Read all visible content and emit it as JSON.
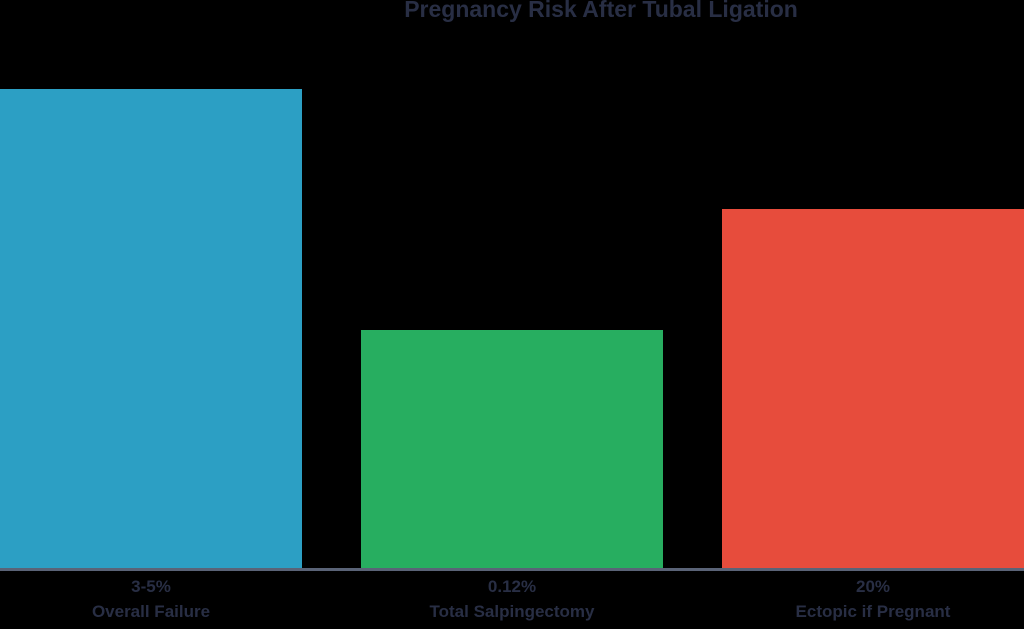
{
  "title": "Pregnancy Risk After Tubal Ligation",
  "colors": {
    "background": "#000000",
    "title_text": "#282e44",
    "label_text": "#282e44",
    "axis_line": "#5a6377",
    "bar_blue": "#2c9fc4",
    "bar_green": "#27ae60",
    "bar_red": "#e74c3c"
  },
  "bars": [
    {
      "value_label": "3-5%",
      "category_label": "Overall Failure",
      "color": "#2c9fc4"
    },
    {
      "value_label": "0.12%",
      "category_label": "Total Salpingectomy",
      "color": "#27ae60"
    },
    {
      "value_label": "20%",
      "category_label": "Ectopic if Pregnant",
      "color": "#e74c3c"
    }
  ],
  "chart_data": {
    "type": "bar",
    "title": "Pregnancy Risk After Tubal Ligation",
    "categories": [
      "Overall Failure",
      "Total Salpingectomy",
      "Ectopic if Pregnant"
    ],
    "value_labels": [
      "3-5%",
      "0.12%",
      "20%"
    ],
    "values_percent": [
      "3-5",
      "0.12",
      "20"
    ],
    "relative_bar_heights": [
      1.0,
      0.5,
      0.75
    ],
    "bar_colors": [
      "#2c9fc4",
      "#27ae60",
      "#e74c3c"
    ],
    "xlabel": "",
    "ylabel": "",
    "grid": false,
    "legend": false,
    "axis_labels_visible": true
  }
}
